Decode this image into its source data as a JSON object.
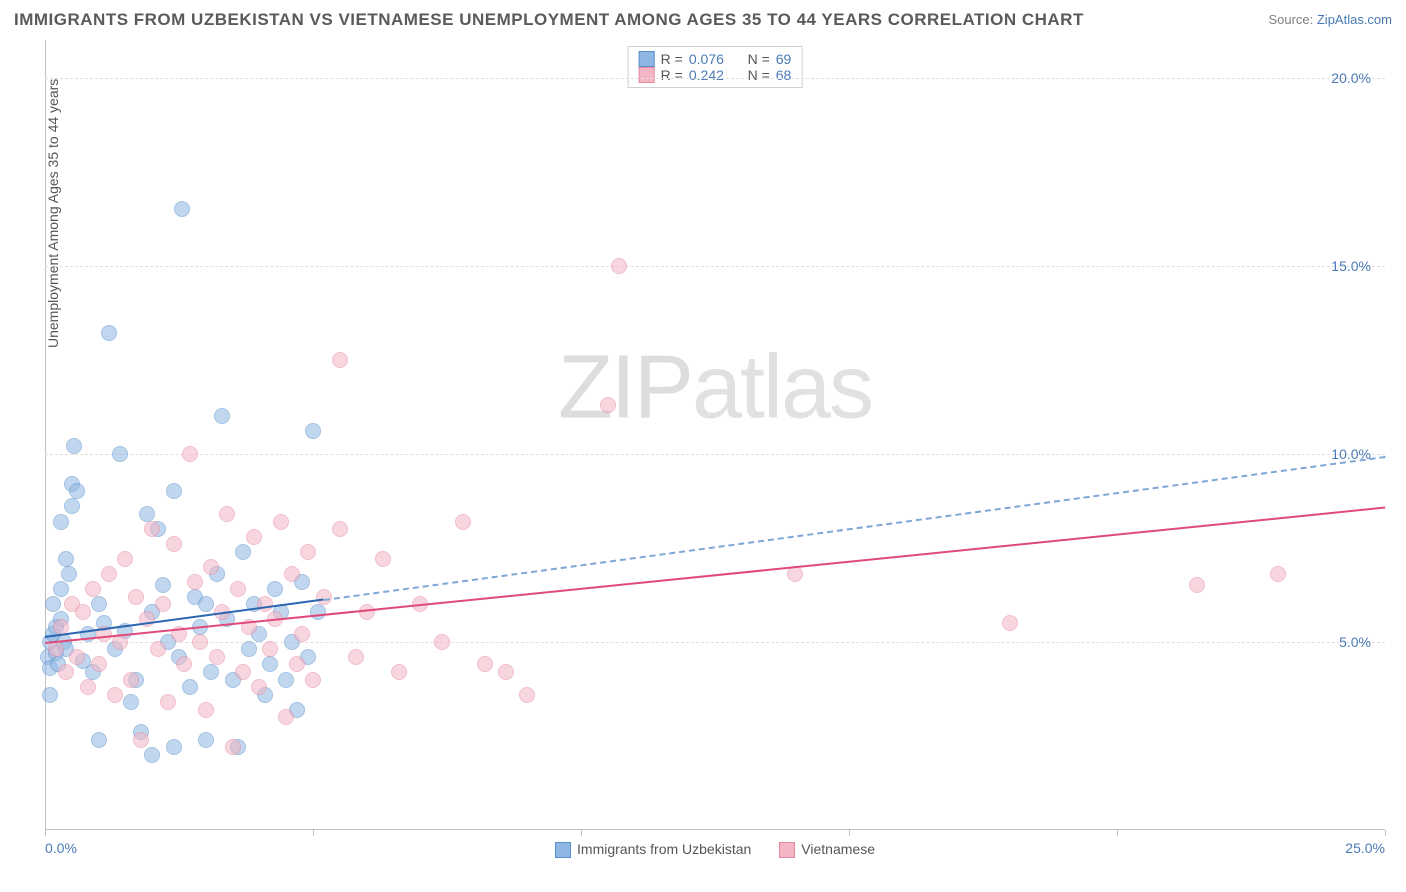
{
  "title": "IMMIGRANTS FROM UZBEKISTAN VS VIETNAMESE UNEMPLOYMENT AMONG AGES 35 TO 44 YEARS CORRELATION CHART",
  "source_prefix": "Source: ",
  "source_link": "ZipAtlas.com",
  "watermark_a": "ZIP",
  "watermark_b": "atlas",
  "chart": {
    "type": "scatter",
    "ylabel": "Unemployment Among Ages 35 to 44 years",
    "xlim": [
      0,
      25
    ],
    "ylim": [
      0,
      21
    ],
    "xticks": [
      0,
      5,
      10,
      15,
      20,
      25
    ],
    "yticks": [
      5,
      10,
      15,
      20
    ],
    "xtick_labels": {
      "0": "0.0%",
      "25": "25.0%"
    },
    "ytick_labels": {
      "5": "5.0%",
      "10": "10.0%",
      "15": "15.0%",
      "20": "20.0%"
    },
    "grid_color": "#e0e0e0",
    "axis_color": "#c0c0c0",
    "background_color": "#ffffff",
    "tick_color": "#4a7ab5",
    "label_fontsize": 14,
    "title_fontsize": 17,
    "title_color": "#5a5a5a",
    "marker_radius": 8,
    "marker_opacity": 0.55,
    "series": [
      {
        "name": "Immigrants from Uzbekistan",
        "fill_color": "#8fb7e3",
        "stroke_color": "#5a8fc8",
        "R": "0.076",
        "N": "69",
        "trend": {
          "x0": 0,
          "y0": 5.15,
          "x1_solid": 5.2,
          "x1_dashed": 25,
          "y_at_25": 9.95,
          "solid_color": "#2b66b1",
          "dashed_color": "#7fa7d6"
        },
        "points": [
          [
            0.05,
            4.6
          ],
          [
            0.1,
            5.0
          ],
          [
            0.1,
            4.3
          ],
          [
            0.15,
            5.2
          ],
          [
            0.2,
            4.7
          ],
          [
            0.2,
            5.4
          ],
          [
            0.15,
            6.0
          ],
          [
            0.25,
            4.4
          ],
          [
            0.3,
            5.6
          ],
          [
            0.1,
            3.6
          ],
          [
            0.3,
            6.4
          ],
          [
            0.35,
            5.0
          ],
          [
            0.4,
            4.8
          ],
          [
            0.3,
            8.2
          ],
          [
            0.5,
            9.2
          ],
          [
            0.55,
            10.2
          ],
          [
            0.6,
            9.0
          ],
          [
            0.4,
            7.2
          ],
          [
            0.5,
            8.6
          ],
          [
            0.45,
            6.8
          ],
          [
            0.7,
            4.5
          ],
          [
            0.8,
            5.2
          ],
          [
            0.9,
            4.2
          ],
          [
            1.0,
            6.0
          ],
          [
            1.1,
            5.5
          ],
          [
            1.2,
            13.2
          ],
          [
            1.3,
            4.8
          ],
          [
            1.4,
            10.0
          ],
          [
            1.5,
            5.3
          ],
          [
            1.6,
            3.4
          ],
          [
            1.7,
            4.0
          ],
          [
            1.8,
            2.6
          ],
          [
            1.9,
            8.4
          ],
          [
            2.0,
            5.8
          ],
          [
            2.1,
            8.0
          ],
          [
            2.2,
            6.5
          ],
          [
            2.3,
            5.0
          ],
          [
            2.4,
            9.0
          ],
          [
            2.5,
            4.6
          ],
          [
            2.55,
            16.5
          ],
          [
            2.7,
            3.8
          ],
          [
            2.8,
            6.2
          ],
          [
            2.9,
            5.4
          ],
          [
            3.0,
            2.4
          ],
          [
            3.1,
            4.2
          ],
          [
            3.2,
            6.8
          ],
          [
            3.3,
            11.0
          ],
          [
            3.4,
            5.6
          ],
          [
            3.5,
            4.0
          ],
          [
            3.6,
            2.2
          ],
          [
            3.7,
            7.4
          ],
          [
            3.8,
            4.8
          ],
          [
            3.9,
            6.0
          ],
          [
            4.0,
            5.2
          ],
          [
            4.1,
            3.6
          ],
          [
            4.2,
            4.4
          ],
          [
            4.3,
            6.4
          ],
          [
            4.4,
            5.8
          ],
          [
            4.5,
            4.0
          ],
          [
            4.6,
            5.0
          ],
          [
            4.7,
            3.2
          ],
          [
            4.8,
            6.6
          ],
          [
            4.9,
            4.6
          ],
          [
            5.0,
            10.6
          ],
          [
            5.1,
            5.8
          ],
          [
            2.0,
            2.0
          ],
          [
            2.4,
            2.2
          ],
          [
            3.0,
            6.0
          ],
          [
            1.0,
            2.4
          ]
        ]
      },
      {
        "name": "Vietnamese",
        "fill_color": "#f4b6c5",
        "stroke_color": "#e58aa1",
        "R": "0.242",
        "N": "68",
        "trend": {
          "x0": 0,
          "y0": 5.0,
          "x1_solid": 25,
          "y_at_25": 8.6,
          "solid_color": "#e04a7a"
        },
        "points": [
          [
            0.2,
            4.8
          ],
          [
            0.3,
            5.4
          ],
          [
            0.4,
            4.2
          ],
          [
            0.5,
            6.0
          ],
          [
            0.6,
            4.6
          ],
          [
            0.7,
            5.8
          ],
          [
            0.8,
            3.8
          ],
          [
            0.9,
            6.4
          ],
          [
            1.0,
            4.4
          ],
          [
            1.1,
            5.2
          ],
          [
            1.2,
            6.8
          ],
          [
            1.3,
            3.6
          ],
          [
            1.4,
            5.0
          ],
          [
            1.5,
            7.2
          ],
          [
            1.6,
            4.0
          ],
          [
            1.7,
            6.2
          ],
          [
            1.8,
            2.4
          ],
          [
            1.9,
            5.6
          ],
          [
            2.0,
            8.0
          ],
          [
            2.1,
            4.8
          ],
          [
            2.2,
            6.0
          ],
          [
            2.3,
            3.4
          ],
          [
            2.4,
            7.6
          ],
          [
            2.5,
            5.2
          ],
          [
            2.6,
            4.4
          ],
          [
            2.7,
            10.0
          ],
          [
            2.8,
            6.6
          ],
          [
            2.9,
            5.0
          ],
          [
            3.0,
            3.2
          ],
          [
            3.1,
            7.0
          ],
          [
            3.2,
            4.6
          ],
          [
            3.3,
            5.8
          ],
          [
            3.4,
            8.4
          ],
          [
            3.5,
            2.2
          ],
          [
            3.6,
            6.4
          ],
          [
            3.7,
            4.2
          ],
          [
            3.8,
            5.4
          ],
          [
            3.9,
            7.8
          ],
          [
            4.0,
            3.8
          ],
          [
            4.1,
            6.0
          ],
          [
            4.2,
            4.8
          ],
          [
            4.3,
            5.6
          ],
          [
            4.4,
            8.2
          ],
          [
            4.5,
            3.0
          ],
          [
            4.6,
            6.8
          ],
          [
            4.7,
            4.4
          ],
          [
            4.8,
            5.2
          ],
          [
            4.9,
            7.4
          ],
          [
            5.0,
            4.0
          ],
          [
            5.2,
            6.2
          ],
          [
            5.5,
            8.0
          ],
          [
            5.8,
            4.6
          ],
          [
            5.5,
            12.5
          ],
          [
            6.0,
            5.8
          ],
          [
            6.3,
            7.2
          ],
          [
            6.6,
            4.2
          ],
          [
            7.0,
            6.0
          ],
          [
            7.4,
            5.0
          ],
          [
            7.8,
            8.2
          ],
          [
            8.2,
            4.4
          ],
          [
            8.6,
            4.2
          ],
          [
            9.0,
            3.6
          ],
          [
            10.5,
            11.3
          ],
          [
            10.7,
            15.0
          ],
          [
            14.0,
            6.8
          ],
          [
            18.0,
            5.5
          ],
          [
            21.5,
            6.5
          ],
          [
            23.0,
            6.8
          ]
        ]
      }
    ],
    "legend_top": {
      "R_label": "R =",
      "N_label": "N ="
    },
    "legend_bottom_labels": [
      "Immigrants from Uzbekistan",
      "Vietnamese"
    ]
  }
}
